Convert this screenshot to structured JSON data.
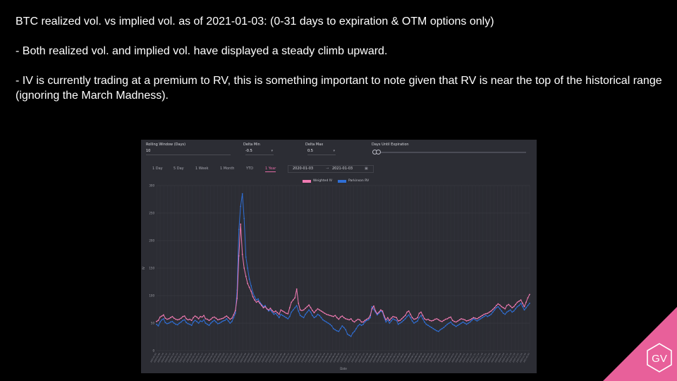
{
  "slide": {
    "title_line": "BTC realized vol. vs implied vol. as of 2021-01-03: (0-31 days to expiration & OTM options only)",
    "bullet_1": "- Both realized vol. and implied vol. have displayed a steady climb upward.",
    "bullet_2": "- IV is currently trading at a premium to RV, this is something important to note given that RV is near the top of the historical range (ignoring the March Madness).",
    "logo_text": "GV",
    "accent_color": "#e8609a"
  },
  "dashboard": {
    "rolling_window_label": "Rolling Window (Days)",
    "rolling_window_value": "10",
    "delta_min_label": "Delta Min",
    "delta_min_value": "-0.5",
    "delta_max_label": "Delta Max",
    "delta_max_value": "0.5",
    "days_until_expiration_label": "Days Until Expiration",
    "periods": [
      "1 Day",
      "5 Day",
      "1 Week",
      "1 Month",
      "YTD",
      "1 Year"
    ],
    "active_period": "1 Year",
    "date_from": "2020-01-03",
    "date_to": "2021-01-03",
    "calendar_icon": "calendar-icon",
    "chevron_icon": "chevron-down-icon"
  },
  "chart_data": {
    "type": "line",
    "title": "",
    "xlabel": "Date",
    "ylabel": "IV",
    "ylim": [
      0,
      300
    ],
    "yticks": [
      0,
      50,
      100,
      150,
      200,
      250,
      300
    ],
    "grid": true,
    "legend_placement": "top-center",
    "x_start": "2020-01-03",
    "x_end": "2021-01-03",
    "series": [
      {
        "name": "Weighted IV",
        "color": "#f07ab2",
        "values": [
          53,
          55,
          61,
          63,
          65,
          59,
          57,
          58,
          60,
          62,
          59,
          57,
          56,
          57,
          59,
          62,
          63,
          58,
          56,
          57,
          55,
          60,
          63,
          61,
          58,
          62,
          61,
          64,
          58,
          57,
          55,
          57,
          60,
          61,
          59,
          56,
          57,
          58,
          59,
          61,
          63,
          60,
          57,
          59,
          65,
          73,
          95,
          172,
          230,
          175,
          150,
          135,
          122,
          115,
          108,
          98,
          92,
          88,
          90,
          86,
          82,
          78,
          80,
          76,
          74,
          77,
          73,
          70,
          72,
          69,
          66,
          74,
          72,
          70,
          68,
          67,
          78,
          88,
          92,
          96,
          112,
          86,
          74,
          73,
          74,
          77,
          80,
          83,
          78,
          73,
          69,
          73,
          76,
          74,
          72,
          70,
          68,
          66,
          65,
          64,
          63,
          62,
          64,
          60,
          57,
          61,
          63,
          60,
          58,
          57,
          56,
          58,
          54,
          52,
          55,
          57,
          56,
          52,
          52,
          55,
          57,
          59,
          64,
          76,
          81,
          72,
          67,
          70,
          74,
          72,
          63,
          56,
          60,
          55,
          59,
          62,
          61,
          60,
          54,
          55,
          58,
          61,
          64,
          70,
          72,
          66,
          60,
          57,
          58,
          60,
          68,
          70,
          64,
          58,
          56,
          57,
          55,
          54,
          55,
          57,
          58,
          56,
          54,
          53,
          55,
          57,
          58,
          60,
          61,
          55,
          53,
          52,
          54,
          56,
          58,
          57,
          56,
          54,
          55,
          56,
          58,
          60,
          59,
          58,
          60,
          62,
          64,
          66,
          67,
          68,
          70,
          72,
          75,
          78,
          82,
          85,
          83,
          80,
          78,
          76,
          82,
          84,
          81,
          78,
          80,
          84,
          88,
          90,
          92,
          86,
          80,
          88,
          96,
          102
        ]
      },
      {
        "name": "Parkinson RV",
        "color": "#2f6fd6",
        "values": [
          48,
          45,
          52,
          56,
          58,
          51,
          49,
          50,
          52,
          53,
          50,
          48,
          47,
          50,
          52,
          55,
          56,
          51,
          49,
          48,
          46,
          52,
          55,
          53,
          50,
          54,
          53,
          56,
          50,
          48,
          46,
          50,
          53,
          55,
          52,
          49,
          50,
          52,
          54,
          55,
          58,
          54,
          50,
          53,
          60,
          68,
          110,
          220,
          262,
          285,
          240,
          170,
          150,
          130,
          118,
          105,
          98,
          92,
          94,
          88,
          84,
          80,
          82,
          76,
          72,
          74,
          70,
          66,
          68,
          64,
          60,
          66,
          64,
          62,
          60,
          58,
          62,
          70,
          74,
          78,
          82,
          72,
          64,
          62,
          60,
          66,
          70,
          74,
          70,
          64,
          60,
          62,
          66,
          64,
          60,
          56,
          54,
          52,
          50,
          48,
          45,
          40,
          38,
          36,
          35,
          40,
          45,
          42,
          38,
          30,
          28,
          26,
          32,
          35,
          40,
          45,
          48,
          46,
          48,
          52,
          55,
          56,
          60,
          80,
          75,
          70,
          65,
          68,
          72,
          70,
          60,
          52,
          56,
          50,
          54,
          58,
          56,
          55,
          48,
          50,
          52,
          55,
          58,
          62,
          65,
          60,
          54,
          50,
          52,
          54,
          60,
          64,
          58,
          52,
          48,
          46,
          44,
          42,
          40,
          38,
          36,
          35,
          38,
          40,
          42,
          45,
          48,
          50,
          52,
          48,
          46,
          44,
          46,
          48,
          50,
          52,
          50,
          48,
          50,
          52,
          55,
          58,
          56,
          54,
          56,
          58,
          60,
          62,
          64,
          62,
          64,
          66,
          70,
          74,
          78,
          80,
          76,
          72,
          68,
          66,
          70,
          72,
          74,
          70,
          72,
          76,
          80,
          82,
          86,
          80,
          74,
          78,
          82,
          86
        ]
      }
    ]
  }
}
